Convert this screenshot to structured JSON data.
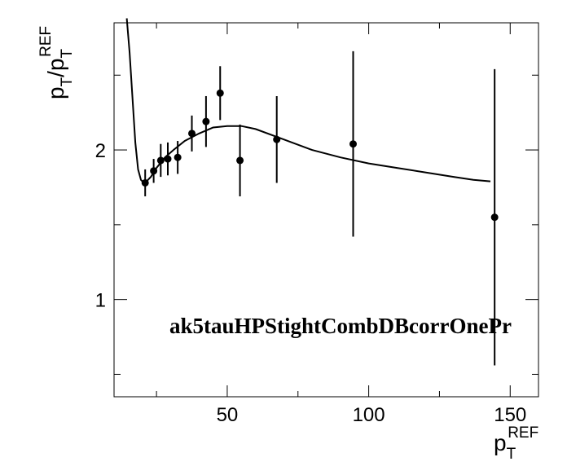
{
  "chart_data": {
    "type": "scatter",
    "title": "",
    "xlabel": {
      "base": "p",
      "sub": "T",
      "sup": "REF"
    },
    "ylabel": {
      "num_base": "p",
      "num_sub": "T",
      "slash": "/",
      "den_base": "p",
      "den_sub": "T",
      "den_sup": "REF"
    },
    "xlim": [
      10,
      160
    ],
    "ylim": [
      0.35,
      2.85
    ],
    "xticks": [
      {
        "value": 50,
        "label": "50"
      },
      {
        "value": 100,
        "label": "100"
      },
      {
        "value": 150,
        "label": "150"
      }
    ],
    "yticks": [
      {
        "value": 1,
        "label": "1"
      },
      {
        "value": 2,
        "label": "2"
      }
    ],
    "x_minor_step": 25,
    "y_minor_step": 0.5,
    "grid": false,
    "annotation": "ak5tauHPStightCombDBcorrOnePr",
    "points": [
      {
        "x": 21.0,
        "y": 1.78,
        "yerr": 0.09
      },
      {
        "x": 24.0,
        "y": 1.86,
        "yerr": 0.08
      },
      {
        "x": 26.5,
        "y": 1.93,
        "yerr": 0.11
      },
      {
        "x": 29.0,
        "y": 1.94,
        "yerr": 0.11
      },
      {
        "x": 32.5,
        "y": 1.95,
        "yerr": 0.11
      },
      {
        "x": 37.5,
        "y": 2.11,
        "yerr": 0.12
      },
      {
        "x": 42.5,
        "y": 2.19,
        "yerr": 0.17
      },
      {
        "x": 47.5,
        "y": 2.38,
        "yerr": 0.18
      },
      {
        "x": 54.5,
        "y": 1.93,
        "yerr": 0.24
      },
      {
        "x": 67.5,
        "y": 2.07,
        "yerr": 0.29
      },
      {
        "x": 94.5,
        "y": 2.04,
        "yerr": 0.62
      },
      {
        "x": 144.5,
        "y": 1.55,
        "yerr": 0.99
      }
    ],
    "fit": {
      "x": [
        14.5,
        15.5,
        16.5,
        17.5,
        18.5,
        19.5,
        20.5,
        21.5,
        23,
        25,
        28,
        31,
        35,
        40,
        45,
        50,
        55,
        60,
        70,
        80,
        90,
        100,
        110,
        120,
        130,
        137,
        143
      ],
      "y": [
        2.88,
        2.65,
        2.35,
        2.05,
        1.87,
        1.8,
        1.78,
        1.79,
        1.82,
        1.88,
        1.95,
        2.0,
        2.06,
        2.11,
        2.15,
        2.16,
        2.16,
        2.14,
        2.07,
        2.0,
        1.95,
        1.91,
        1.88,
        1.85,
        1.82,
        1.8,
        1.79
      ]
    }
  }
}
